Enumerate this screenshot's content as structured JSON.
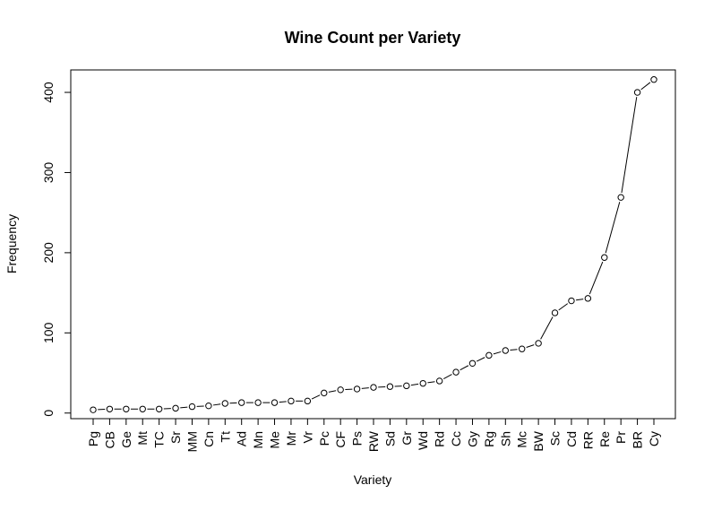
{
  "chart_data": {
    "type": "line",
    "title": "Wine Count per Variety",
    "xlabel": "Variety",
    "ylabel": "Frequency",
    "ylim": [
      -7,
      428
    ],
    "yticks": [
      0,
      100,
      200,
      300,
      400
    ],
    "grid": false,
    "legend": "none",
    "marker": "open-circle",
    "categories": [
      "Pg",
      "CB",
      "Ge",
      "Mt",
      "TC",
      "Sr",
      "MM",
      "Cn",
      "Tt",
      "Ad",
      "Mn",
      "Me",
      "Mr",
      "Vr",
      "Pc",
      "CF",
      "Ps",
      "RW",
      "Sd",
      "Gr",
      "Wd",
      "Rd",
      "Cc",
      "Gy",
      "Rg",
      "Sh",
      "Mc",
      "BW",
      "Sc",
      "Cd",
      "RR",
      "Re",
      "Pr",
      "BR",
      "Cy"
    ],
    "values": [
      4,
      5,
      5,
      5,
      5,
      6,
      8,
      9,
      12,
      13,
      13,
      13,
      15,
      15,
      25,
      29,
      30,
      32,
      33,
      34,
      37,
      40,
      51,
      62,
      72,
      78,
      80,
      87,
      125,
      140,
      143,
      194,
      269,
      400,
      416
    ]
  }
}
